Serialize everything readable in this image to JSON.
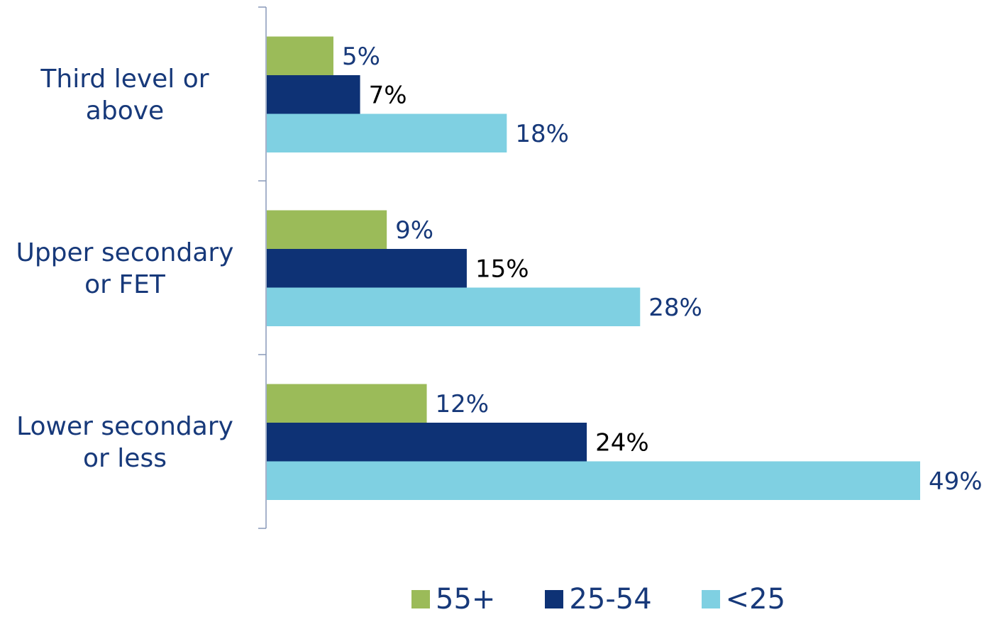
{
  "chart_data": {
    "type": "bar",
    "orientation": "horizontal",
    "categories": [
      "Third level or above",
      "Upper secondary or FET",
      "Lower secondary or less"
    ],
    "category_lines": [
      [
        "Third level or",
        "above"
      ],
      [
        "Upper secondary",
        "or FET"
      ],
      [
        "Lower secondary",
        "or less"
      ]
    ],
    "series": [
      {
        "name": "55+",
        "color": "#9bbb59",
        "label_color": "#17397a",
        "values": [
          5,
          9,
          12
        ],
        "labels": [
          "5%",
          "9%",
          "12%"
        ]
      },
      {
        "name": "25-54",
        "color": "#0e3275",
        "label_color": "#000000",
        "values": [
          7,
          15,
          24
        ],
        "labels": [
          "7%",
          "15%",
          "24%"
        ]
      },
      {
        "name": "<25",
        "color": "#7fd0e2",
        "label_color": "#17397a",
        "values": [
          18,
          28,
          49
        ],
        "labels": [
          "18%",
          "28%",
          "49%"
        ]
      }
    ],
    "xlim": [
      0,
      49
    ],
    "grid": false,
    "legend_position": "bottom",
    "title": "",
    "xlabel": "",
    "ylabel": ""
  }
}
